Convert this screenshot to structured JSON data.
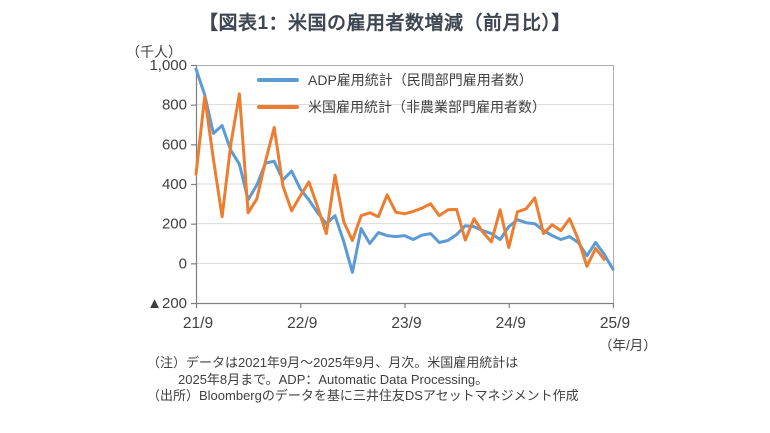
{
  "title": "【図表1：米国の雇用者数増減（前月比）】",
  "y_axis": {
    "unit_label": "（千人）",
    "tick_labels": [
      "1,000",
      "800",
      "600",
      "400",
      "200",
      "0",
      "▲200"
    ]
  },
  "x_axis": {
    "tick_labels": [
      "21/9",
      "22/9",
      "23/9",
      "24/9",
      "25/9"
    ],
    "unit_label": "（年/月）"
  },
  "legend": {
    "items": [
      {
        "label": "ADP雇用統計（民間部門雇用者数）",
        "color": "#5B9BD5"
      },
      {
        "label": "米国雇用統計（非農業部門雇用者数）",
        "color": "#ED7D31"
      }
    ]
  },
  "notes": {
    "line1": "（注）データは2021年9月～2025年9月、月次。米国雇用統計は",
    "line2": "2025年8月まで。ADP：Automatic Data Processing。",
    "line3": "（出所）Bloombergのデータを基に三井住友DSアセットマネジメント作成"
  },
  "chart_data": {
    "type": "line",
    "title": "米国の雇用者数増減（前月比）",
    "ylabel": "千人",
    "ylim": [
      -200,
      1000
    ],
    "y_ticks": [
      1000,
      800,
      600,
      400,
      200,
      0,
      -200
    ],
    "grid": true,
    "legend_position": "top-inside",
    "x": [
      "21/9",
      "21/10",
      "21/11",
      "21/12",
      "22/1",
      "22/2",
      "22/3",
      "22/4",
      "22/5",
      "22/6",
      "22/7",
      "22/8",
      "22/9",
      "22/10",
      "22/11",
      "22/12",
      "23/1",
      "23/2",
      "23/3",
      "23/4",
      "23/5",
      "23/6",
      "23/7",
      "23/8",
      "23/9",
      "23/10",
      "23/11",
      "23/12",
      "24/1",
      "24/2",
      "24/3",
      "24/4",
      "24/5",
      "24/6",
      "24/7",
      "24/8",
      "24/9",
      "24/10",
      "24/11",
      "24/12",
      "25/1",
      "25/2",
      "25/3",
      "25/4",
      "25/5",
      "25/6",
      "25/7",
      "25/8",
      "25/9"
    ],
    "x_tick_indices": [
      0,
      12,
      24,
      36,
      48
    ],
    "series": [
      {
        "name": "ADP雇用統計（民間部門雇用者数）",
        "color": "#5B9BD5",
        "values": [
          980,
          850,
          655,
          695,
          570,
          500,
          320,
          395,
          505,
          515,
          420,
          465,
          375,
          320,
          255,
          200,
          240,
          110,
          -45,
          175,
          100,
          155,
          140,
          135,
          140,
          120,
          142,
          150,
          105,
          115,
          145,
          190,
          185,
          165,
          150,
          120,
          185,
          220,
          205,
          200,
          165,
          140,
          120,
          135,
          105,
          38,
          105,
          45,
          -30
        ]
      },
      {
        "name": "米国雇用統計（非農業部門雇用者数）",
        "color": "#ED7D31",
        "values": [
          450,
          840,
          525,
          235,
          600,
          855,
          255,
          325,
          515,
          685,
          390,
          265,
          340,
          410,
          285,
          150,
          445,
          210,
          115,
          240,
          255,
          235,
          345,
          258,
          250,
          262,
          278,
          300,
          240,
          270,
          272,
          117,
          225,
          158,
          108,
          270,
          80,
          260,
          275,
          330,
          150,
          195,
          165,
          225,
          120,
          -15,
          75,
          20
        ]
      }
    ]
  }
}
